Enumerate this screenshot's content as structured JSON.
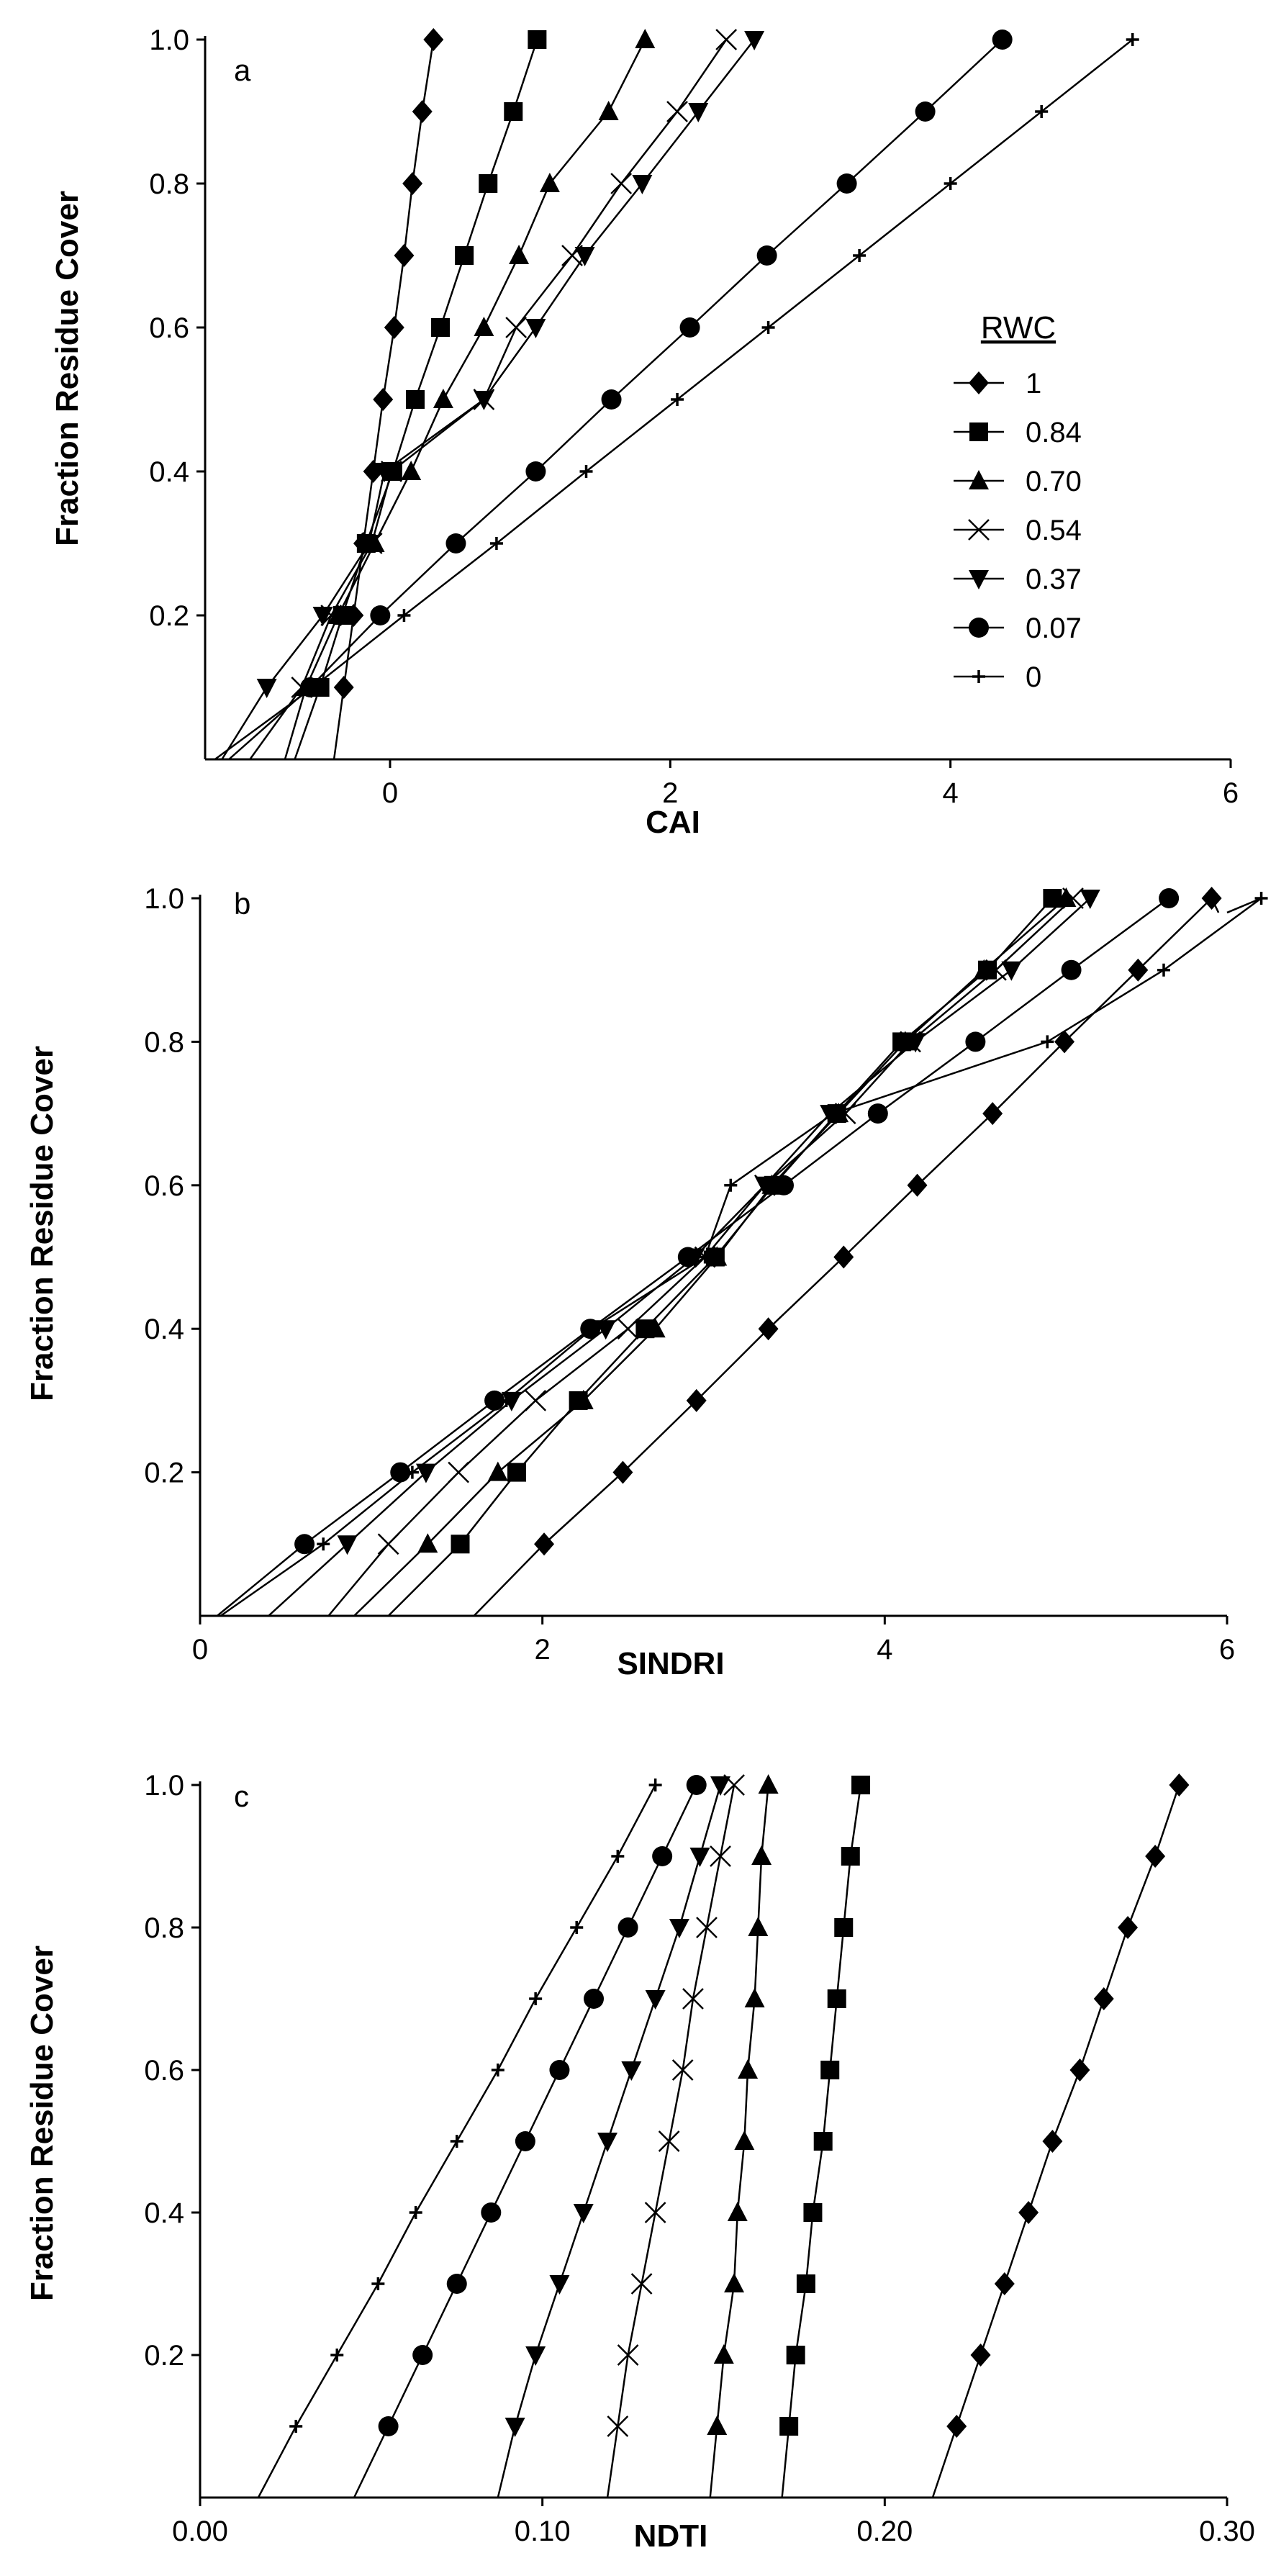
{
  "chart_data": [
    {
      "type": "line",
      "panel_label": "a",
      "xlabel": "CAI",
      "ylabel": "Fraction Residue Cover",
      "xlim": [
        -1.32,
        6
      ],
      "ylim": [
        0,
        1.0
      ],
      "xticks": [
        0,
        2,
        4,
        6
      ],
      "xtick_labels": [
        "0",
        "2",
        "4",
        "6"
      ],
      "yticks": [
        0.2,
        0.4,
        0.6,
        0.8,
        1.0
      ],
      "ytick_labels": [
        "0.2",
        "0.4",
        "0.6",
        "0.8",
        "1.0"
      ],
      "legend_title": "RWC",
      "legend_position": "middle-right",
      "y": [
        0.1,
        0.2,
        0.3,
        0.4,
        0.5,
        0.6,
        0.7,
        0.8,
        0.9,
        1.0
      ],
      "series": [
        {
          "name": "1",
          "marker": "diamond",
          "x": [
            -0.33,
            -0.26,
            -0.19,
            -0.12,
            -0.05,
            0.03,
            0.1,
            0.16,
            0.23,
            0.31
          ],
          "line_x0": -0.4
        },
        {
          "name": "0.84",
          "marker": "square",
          "x": [
            -0.5,
            -0.34,
            -0.17,
            0.02,
            0.18,
            0.36,
            0.53,
            0.7,
            0.88,
            1.05
          ],
          "line_x0": -0.68
        },
        {
          "name": "0.70",
          "marker": "triangle-up",
          "x": [
            -0.6,
            -0.37,
            -0.11,
            0.15,
            0.38,
            0.67,
            0.92,
            1.14,
            1.56,
            1.82
          ],
          "line_x0": -0.75
        },
        {
          "name": "0.54",
          "marker": "x",
          "x": [
            -0.63,
            -0.42,
            -0.13,
            0.01,
            0.67,
            0.9,
            1.3,
            1.65,
            2.05,
            2.4
          ],
          "line_x0": -1.0
        },
        {
          "name": "0.37",
          "marker": "triangle-down",
          "x": [
            -0.88,
            -0.48,
            -0.15,
            -0.04,
            0.67,
            1.04,
            1.39,
            1.8,
            2.2,
            2.6
          ],
          "line_x0": -1.2
        },
        {
          "name": "0.07",
          "marker": "circle",
          "x": [
            -0.57,
            -0.07,
            0.47,
            1.04,
            1.58,
            2.14,
            2.69,
            3.26,
            3.82,
            4.37
          ],
          "line_x0": -1.15
        },
        {
          "name": "0",
          "marker": "plus",
          "x": [
            -0.55,
            0.1,
            0.76,
            1.4,
            2.05,
            2.7,
            3.35,
            4.0,
            4.65,
            5.3
          ],
          "line_x0": -1.25
        }
      ]
    },
    {
      "type": "line",
      "panel_label": "b",
      "xlabel": "SINDRI",
      "ylabel": "Fraction Residue Cover",
      "xlim": [
        0,
        6
      ],
      "ylim": [
        0,
        1.0
      ],
      "xticks": [
        0,
        2,
        4,
        6
      ],
      "xtick_labels": [
        "0",
        "2",
        "4",
        "6"
      ],
      "yticks": [
        0.2,
        0.4,
        0.6,
        0.8,
        1.0
      ],
      "ytick_labels": [
        "0.2",
        "0.4",
        "0.6",
        "0.8",
        "1.0"
      ],
      "y": [
        0.1,
        0.2,
        0.3,
        0.4,
        0.5,
        0.6,
        0.7,
        0.8,
        0.9,
        1.0
      ],
      "series": [
        {
          "name": "1",
          "marker": "diamond",
          "x": [
            2.01,
            2.47,
            2.9,
            3.32,
            3.76,
            4.19,
            4.63,
            5.05,
            5.48,
            5.91
          ],
          "line_x0": 1.6,
          "line_x1": 5.95,
          "line_y1": 0.98
        },
        {
          "name": "0.84",
          "marker": "square",
          "x": [
            1.52,
            1.85,
            2.21,
            2.6,
            3.01,
            3.35,
            3.72,
            4.1,
            4.6,
            4.98
          ],
          "line_x0": 1.1
        },
        {
          "name": "0.70",
          "marker": "triangle-up",
          "x": [
            1.33,
            1.74,
            2.24,
            2.66,
            3.02,
            3.34,
            3.73,
            4.12,
            4.58,
            5.06
          ],
          "line_x0": 0.9
        },
        {
          "name": "0.54",
          "marker": "x",
          "x": [
            1.1,
            1.51,
            1.96,
            2.5,
            2.95,
            3.3,
            3.77,
            4.15,
            4.65,
            5.1
          ],
          "line_x0": 0.75
        },
        {
          "name": "0.37",
          "marker": "triangle-down",
          "x": [
            0.86,
            1.32,
            1.82,
            2.37,
            2.89,
            3.3,
            3.68,
            4.18,
            4.74,
            5.2
          ],
          "line_x0": 0.4
        },
        {
          "name": "0.07",
          "marker": "circle",
          "x": [
            0.61,
            1.17,
            1.72,
            2.28,
            2.85,
            3.41,
            3.96,
            4.53,
            5.09,
            5.66
          ],
          "line_x0": 0.1
        },
        {
          "name": "0",
          "marker": "plus",
          "x": [
            0.72,
            1.24,
            1.79,
            2.29,
            2.95,
            3.1,
            3.7,
            4.95,
            5.63,
            6.2
          ],
          "line_x0": 0.12,
          "line_x1": 6.0,
          "line_y1": 0.98
        }
      ]
    },
    {
      "type": "line",
      "panel_label": "c",
      "xlabel": "NDTI",
      "ylabel": "Fraction Residue Cover",
      "xlim": [
        0,
        0.3
      ],
      "ylim": [
        0,
        1.0
      ],
      "xticks": [
        0,
        0.1,
        0.2,
        0.3
      ],
      "xtick_labels": [
        "0.00",
        "0.10",
        "0.20",
        "0.30"
      ],
      "yticks": [
        0.2,
        0.4,
        0.6,
        0.8,
        1.0
      ],
      "ytick_labels": [
        "0.2",
        "0.4",
        "0.6",
        "0.8",
        "1.0"
      ],
      "y": [
        0.1,
        0.2,
        0.3,
        0.4,
        0.5,
        0.6,
        0.7,
        0.8,
        0.9,
        1.0
      ],
      "series": [
        {
          "name": "1",
          "marker": "diamond",
          "x": [
            0.221,
            0.228,
            0.235,
            0.242,
            0.249,
            0.257,
            0.264,
            0.271,
            0.279,
            0.286
          ],
          "line_x0": 0.214
        },
        {
          "name": "0.84",
          "marker": "square",
          "x": [
            0.172,
            0.174,
            0.177,
            0.179,
            0.182,
            0.184,
            0.186,
            0.188,
            0.19,
            0.193
          ],
          "line_x0": 0.17
        },
        {
          "name": "0.70",
          "marker": "triangle-up",
          "x": [
            0.151,
            0.153,
            0.156,
            0.157,
            0.159,
            0.16,
            0.162,
            0.163,
            0.164,
            0.166
          ],
          "line_x0": 0.149
        },
        {
          "name": "0.54",
          "marker": "x",
          "x": [
            0.122,
            0.125,
            0.129,
            0.133,
            0.137,
            0.141,
            0.144,
            0.148,
            0.152,
            0.156
          ],
          "line_x0": 0.119
        },
        {
          "name": "0.37",
          "marker": "triangle-down",
          "x": [
            0.092,
            0.098,
            0.105,
            0.112,
            0.119,
            0.126,
            0.133,
            0.14,
            0.146,
            0.152
          ],
          "line_x0": 0.087
        },
        {
          "name": "0.07",
          "marker": "circle",
          "x": [
            0.055,
            0.065,
            0.075,
            0.085,
            0.095,
            0.105,
            0.115,
            0.125,
            0.135,
            0.145
          ],
          "line_x0": 0.045
        },
        {
          "name": "0",
          "marker": "plus",
          "x": [
            0.028,
            0.04,
            0.052,
            0.063,
            0.075,
            0.087,
            0.098,
            0.11,
            0.122,
            0.133
          ],
          "line_x0": 0.017
        }
      ]
    }
  ]
}
